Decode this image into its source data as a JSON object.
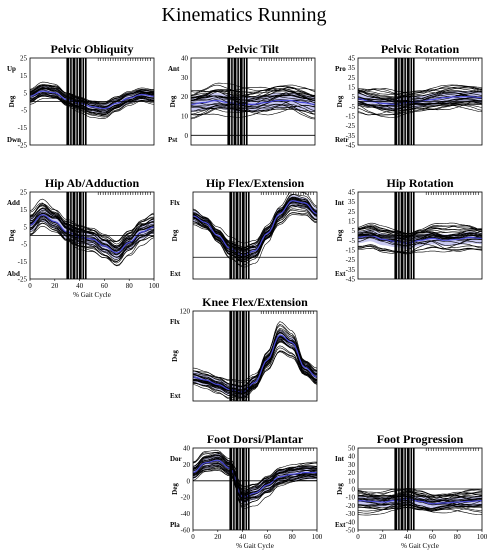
{
  "title": "Kinematics Running",
  "colors": {
    "band": "#9a9ae6",
    "mean": "#4a4ad8",
    "curve": "#000000",
    "event": "#000000"
  },
  "chart_data": [
    {
      "type": "line",
      "title": "Pelvic Obliquity",
      "top_label": "Up",
      "bottom_label": "Dwn",
      "ylabel": "Deg",
      "xlabel": "",
      "ylim": [
        -25,
        25
      ],
      "yticks": [
        25,
        15,
        5,
        -5,
        -15,
        -25
      ],
      "xticks": [],
      "x": [
        0,
        10,
        20,
        30,
        40,
        50,
        60,
        70,
        80,
        90,
        100
      ],
      "mean": [
        3,
        6,
        5,
        1,
        -1,
        -3,
        -4,
        -1,
        2,
        4,
        3
      ],
      "sd": 3,
      "n_trials": 30,
      "spread": 4,
      "events": [
        30,
        31,
        33,
        35,
        36,
        38,
        40,
        41,
        43,
        45
      ]
    },
    {
      "type": "line",
      "title": "Pelvic Tilt",
      "top_label": "Ant",
      "bottom_label": "Pst",
      "ylabel": "Deg",
      "xlabel": "",
      "ylim": [
        -5,
        40
      ],
      "yticks": [
        40,
        30,
        20,
        10,
        0
      ],
      "xticks": [],
      "x": [
        0,
        10,
        20,
        30,
        40,
        50,
        60,
        70,
        80,
        90,
        100
      ],
      "mean": [
        16,
        17,
        18,
        17,
        16,
        16,
        17,
        18,
        18,
        17,
        16
      ],
      "sd": 4,
      "n_trials": 30,
      "spread": 7,
      "events": [
        30,
        31,
        33,
        35,
        36,
        38,
        40,
        41,
        43,
        45
      ]
    },
    {
      "type": "line",
      "title": "Pelvic Rotation",
      "top_label": "Pro",
      "bottom_label": "Retr",
      "ylabel": "Deg",
      "xlabel": "",
      "ylim": [
        -45,
        45
      ],
      "yticks": [
        45,
        35,
        25,
        15,
        5,
        -5,
        -15,
        -25,
        -35,
        -45
      ],
      "xticks": [],
      "x": [
        0,
        10,
        20,
        30,
        40,
        50,
        60,
        70,
        80,
        90,
        100
      ],
      "mean": [
        3,
        0,
        -2,
        -3,
        -1,
        0,
        2,
        4,
        5,
        5,
        4
      ],
      "sd": 6,
      "n_trials": 30,
      "spread": 11,
      "events": [
        30,
        31,
        33,
        35,
        36,
        38,
        40,
        41,
        43,
        45
      ]
    },
    {
      "type": "line",
      "title": "Hip Ab/Adduction",
      "top_label": "Add",
      "bottom_label": "Abd",
      "ylabel": "Deg",
      "xlabel": "% Gait Cycle",
      "ylim": [
        -25,
        25
      ],
      "yticks": [
        25,
        15,
        5,
        -5,
        -15,
        -25
      ],
      "xticks": [
        0,
        20,
        40,
        60,
        80,
        100
      ],
      "x": [
        0,
        10,
        20,
        30,
        40,
        50,
        60,
        70,
        80,
        90,
        100
      ],
      "mean": [
        6,
        12,
        8,
        2,
        -1,
        -2,
        -6,
        -10,
        -4,
        2,
        5
      ],
      "sd": 4,
      "n_trials": 30,
      "spread": 6,
      "events": [
        30,
        31,
        33,
        35,
        36,
        38,
        40,
        41,
        43,
        45
      ]
    },
    {
      "type": "line",
      "title": "Hip Flex/Extension",
      "top_label": "Flx",
      "bottom_label": "Ext",
      "ylabel": "Deg",
      "xlabel": "",
      "ylim": [
        -20,
        60
      ],
      "yticks": [],
      "xticks": [],
      "x": [
        0,
        10,
        20,
        30,
        40,
        50,
        60,
        70,
        80,
        90,
        100
      ],
      "mean": [
        38,
        32,
        20,
        8,
        2,
        6,
        22,
        40,
        52,
        50,
        40
      ],
      "sd": 5,
      "n_trials": 30,
      "spread": 6,
      "events": [
        30,
        31,
        33,
        35,
        36,
        38,
        40,
        41,
        43,
        45
      ]
    },
    {
      "type": "line",
      "title": "Hip Rotation",
      "top_label": "Int",
      "bottom_label": "Ext",
      "ylabel": "Deg",
      "xlabel": "",
      "ylim": [
        -45,
        45
      ],
      "yticks": [
        45,
        35,
        25,
        15,
        5,
        -5,
        -15,
        -25,
        -35,
        -45
      ],
      "xticks": [],
      "x": [
        0,
        10,
        20,
        30,
        40,
        50,
        60,
        70,
        80,
        90,
        100
      ],
      "mean": [
        -2,
        0,
        -4,
        -6,
        -8,
        -5,
        -3,
        -5,
        -4,
        -2,
        -3
      ],
      "sd": 6,
      "n_trials": 30,
      "spread": 12,
      "events": [
        30,
        31,
        33,
        35,
        36,
        38,
        40,
        41,
        43,
        45
      ]
    },
    {
      "type": "line",
      "title": "Knee Flex/Extension",
      "top_label": "Flx",
      "bottom_label": "Ext",
      "ylabel": "Deg",
      "xlabel": "",
      "ylim": [
        0,
        120
      ],
      "yticks": [
        120
      ],
      "xticks": [],
      "x": [
        0,
        10,
        20,
        30,
        40,
        50,
        60,
        70,
        80,
        90,
        100
      ],
      "mean": [
        32,
        28,
        22,
        15,
        12,
        25,
        55,
        88,
        78,
        45,
        32
      ],
      "sd": 7,
      "n_trials": 30,
      "spread": 9,
      "events": [
        30,
        31,
        33,
        35,
        36,
        38,
        40,
        41,
        43,
        45
      ]
    },
    {
      "type": "line",
      "title": "Foot Dorsi/Plantar",
      "top_label": "Dor",
      "bottom_label": "Pla",
      "ylabel": "Deg",
      "xlabel": "% Gait Cycle",
      "ylim": [
        -60,
        40
      ],
      "yticks": [
        40,
        20,
        0,
        -20,
        -40,
        -60
      ],
      "xticks": [
        0,
        20,
        40,
        60,
        80,
        100
      ],
      "x": [
        0,
        10,
        20,
        30,
        40,
        50,
        60,
        70,
        80,
        90,
        100
      ],
      "mean": [
        10,
        22,
        25,
        15,
        -20,
        -15,
        -5,
        5,
        8,
        10,
        10
      ],
      "sd": 8,
      "n_trials": 30,
      "spread": 10,
      "events": [
        30,
        31,
        33,
        35,
        36,
        38,
        40,
        41,
        43,
        45
      ]
    },
    {
      "type": "line",
      "title": "Foot Progression",
      "top_label": "Int",
      "bottom_label": "Ext",
      "ylabel": "Deg",
      "xlabel": "% Gait Cycle",
      "ylim": [
        -50,
        50
      ],
      "yticks": [
        50,
        40,
        30,
        20,
        10,
        0,
        -10,
        -20,
        -30,
        -40,
        -50
      ],
      "xticks": [
        0,
        20,
        40,
        60,
        80,
        100
      ],
      "x": [
        0,
        10,
        20,
        30,
        40,
        50,
        60,
        70,
        80,
        90,
        100
      ],
      "mean": [
        -14,
        -15,
        -16,
        -14,
        -12,
        -15,
        -18,
        -17,
        -16,
        -15,
        -14
      ],
      "sd": 6,
      "n_trials": 30,
      "spread": 12,
      "events": [
        30,
        31,
        33,
        35,
        36,
        38,
        40,
        41,
        43,
        45
      ]
    }
  ]
}
